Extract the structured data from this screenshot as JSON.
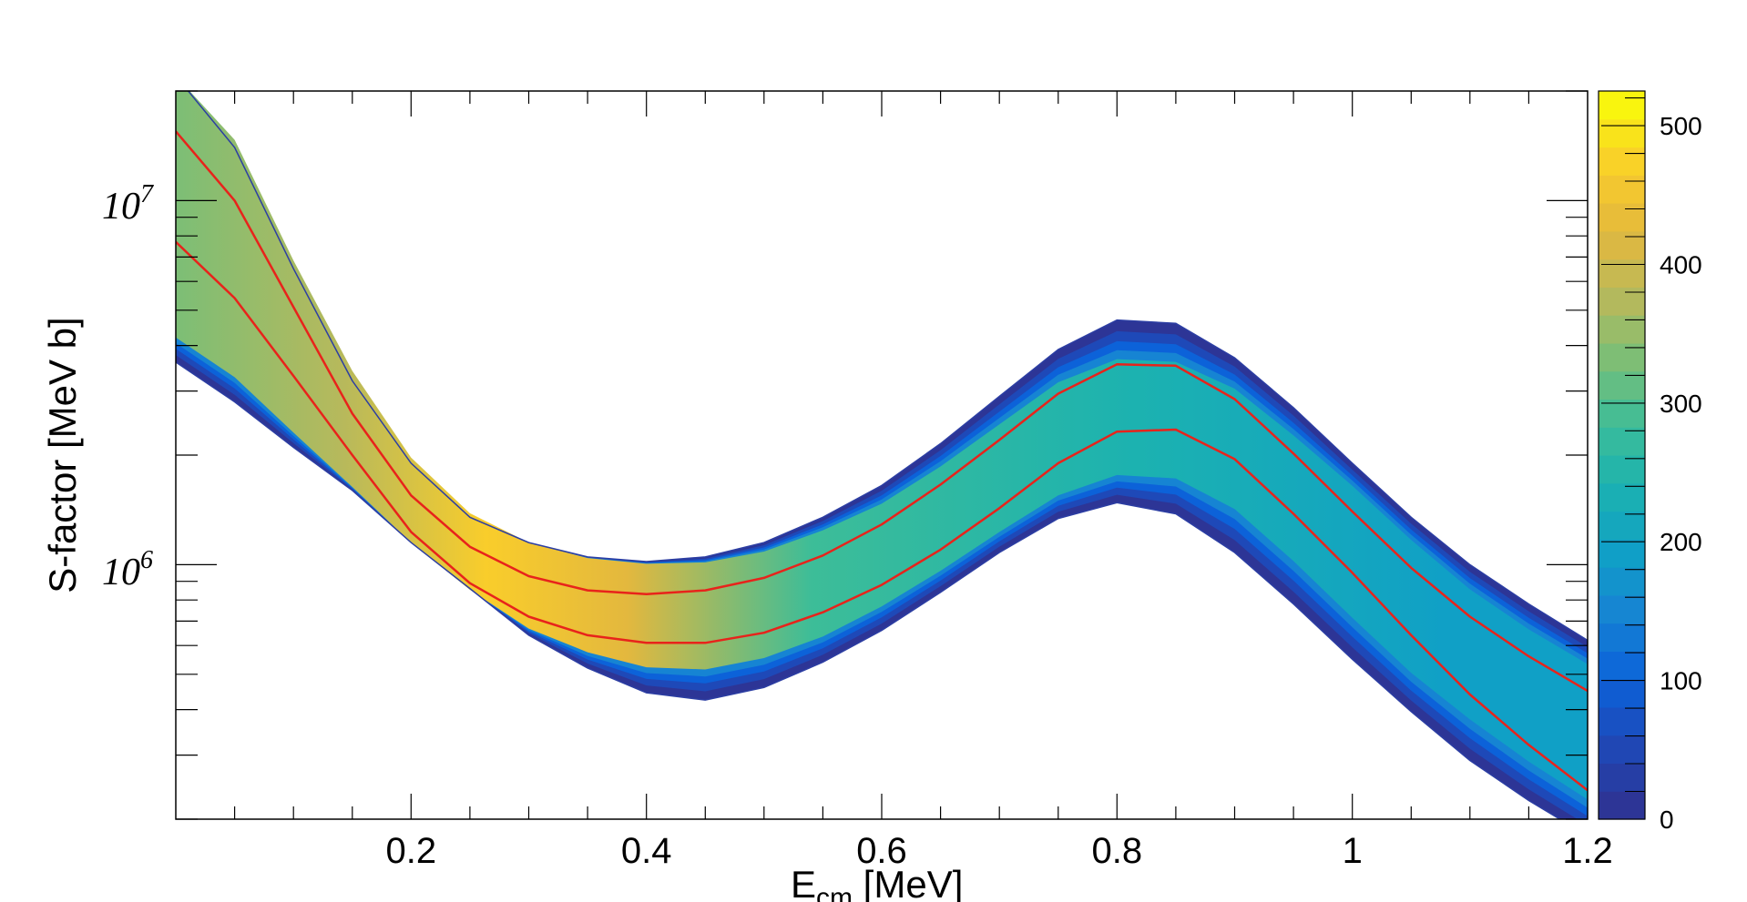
{
  "chart_data": {
    "type": "heatmap",
    "title": "",
    "xlabel": {
      "main": "E",
      "sub": "cm",
      "rest": " [MeV]"
    },
    "ylabel": "S-factor [MeV b]",
    "xlim": [
      0,
      1.2
    ],
    "ylim": [
      200000,
      20000000
    ],
    "yscale": "log",
    "x_tick_labels": [
      "0.2",
      "0.4",
      "0.6",
      "0.8",
      "1",
      "1.2"
    ],
    "x_tick_values": [
      0.2,
      0.4,
      0.6,
      0.8,
      1.0,
      1.2
    ],
    "y_decade_labels": [
      {
        "base": "10",
        "exp": "6",
        "value": 1000000
      },
      {
        "base": "10",
        "exp": "7",
        "value": 10000000
      }
    ],
    "colorbar": {
      "range": [
        0,
        525
      ],
      "tick_labels": [
        "0",
        "100",
        "200",
        "300",
        "400",
        "500"
      ],
      "tick_values": [
        0,
        100,
        200,
        300,
        400,
        500
      ]
    },
    "band": {
      "x": [
        0.0,
        0.05,
        0.1,
        0.15,
        0.2,
        0.25,
        0.3,
        0.35,
        0.4,
        0.45,
        0.5,
        0.55,
        0.6,
        0.65,
        0.7,
        0.75,
        0.8,
        0.85,
        0.9,
        0.95,
        1.0,
        1.05,
        1.1,
        1.15,
        1.2
      ],
      "outer_upper": [
        22000000,
        14000000,
        6500000,
        3200000,
        1900000,
        1350000,
        1150000,
        1050000,
        1020000,
        1050000,
        1150000,
        1350000,
        1650000,
        2150000,
        2900000,
        3900000,
        4700000,
        4600000,
        3700000,
        2700000,
        1900000,
        1350000,
        1000000,
        780000,
        620000
      ],
      "outer_lower": [
        3600000,
        2800000,
        2100000,
        1600000,
        1150000,
        860000,
        640000,
        520000,
        445000,
        425000,
        460000,
        540000,
        660000,
        840000,
        1080000,
        1340000,
        1480000,
        1380000,
        1080000,
        780000,
        550000,
        395000,
        290000,
        225000,
        180000
      ],
      "peak_upper": [
        22000000,
        15000000,
        7000000,
        3500000,
        2000000,
        1400000,
        1150000,
        1040000,
        1000000,
        1000000,
        1060000,
        1200000,
        1400000,
        1750000,
        2250000,
        2900000,
        3300000,
        3250000,
        2800000,
        2100000,
        1550000,
        1100000,
        800000,
        620000,
        500000
      ],
      "peak_lower": [
        4500000,
        3500000,
        2400000,
        1650000,
        1150000,
        850000,
        680000,
        600000,
        560000,
        560000,
        600000,
        680000,
        820000,
        1020000,
        1300000,
        1650000,
        1900000,
        1900000,
        1600000,
        1150000,
        800000,
        560000,
        420000,
        320000,
        250000
      ]
    },
    "red_lines": {
      "x": [
        0.0,
        0.05,
        0.1,
        0.15,
        0.2,
        0.25,
        0.3,
        0.35,
        0.4,
        0.45,
        0.5,
        0.55,
        0.6,
        0.65,
        0.7,
        0.75,
        0.8,
        0.85,
        0.9,
        0.95,
        1.0,
        1.05,
        1.1,
        1.15,
        1.2
      ],
      "upper": [
        15500000,
        10000000,
        5100000,
        2600000,
        1550000,
        1120000,
        930000,
        850000,
        830000,
        850000,
        920000,
        1060000,
        1290000,
        1660000,
        2200000,
        2950000,
        3550000,
        3520000,
        2850000,
        2020000,
        1400000,
        980000,
        720000,
        560000,
        450000
      ],
      "lower": [
        7700000,
        5400000,
        3300000,
        2000000,
        1230000,
        890000,
        720000,
        640000,
        610000,
        610000,
        650000,
        740000,
        880000,
        1100000,
        1430000,
        1900000,
        2320000,
        2350000,
        1950000,
        1380000,
        950000,
        640000,
        440000,
        320000,
        240000
      ]
    },
    "colors": {
      "red_line": "#e8231b",
      "envelope_line": "#2c3ea3",
      "colormap": [
        "#2d3596",
        "#1e49b8",
        "#0c62d9",
        "#1684d3",
        "#10a0c6",
        "#1cb2b0",
        "#3dbd98",
        "#7cbe76",
        "#b8b95b",
        "#e3b83e",
        "#f9cd2b",
        "#f9f50e"
      ]
    }
  }
}
